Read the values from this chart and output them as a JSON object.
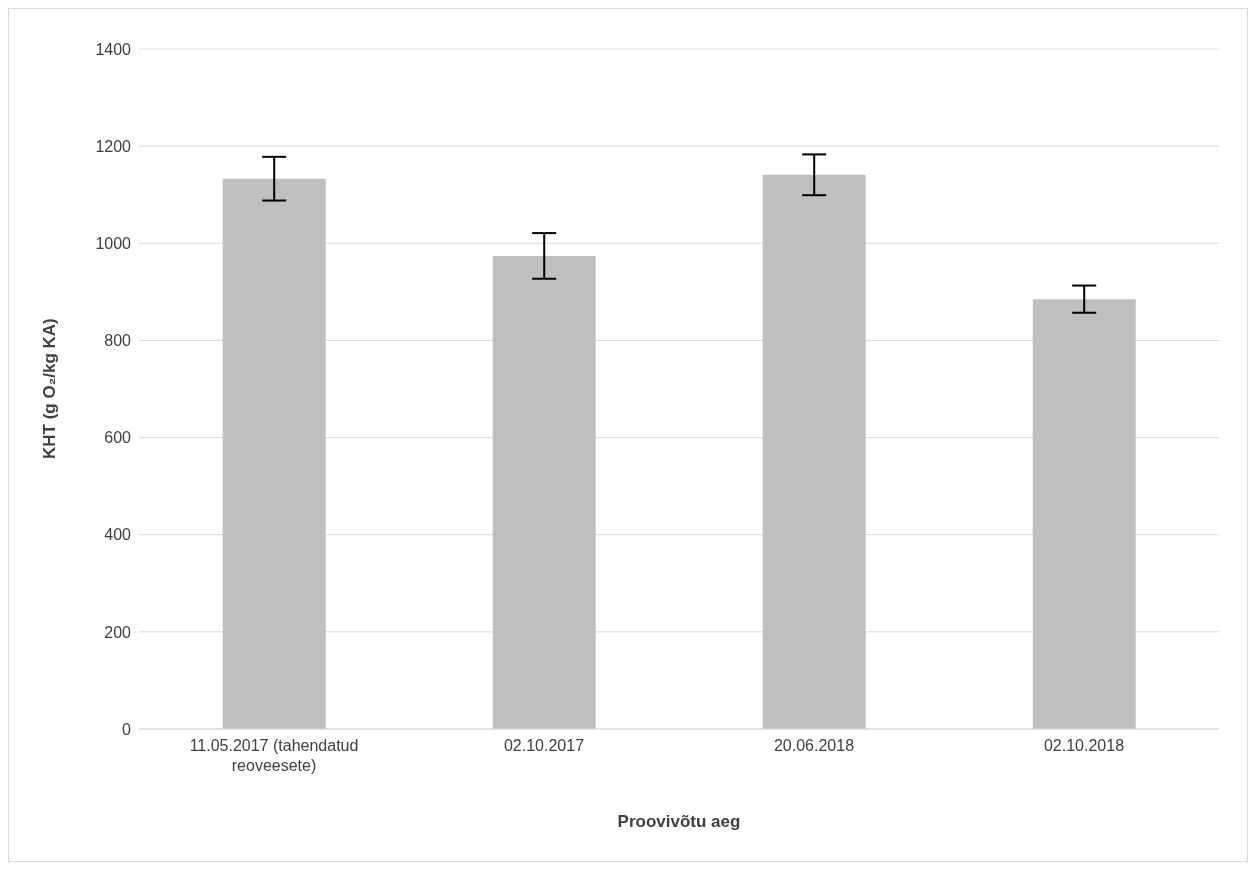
{
  "chart_data": {
    "type": "bar",
    "xlabel": "Proovivõtu aeg",
    "ylabel": "KHT (g O₂/kg KA)",
    "categories": [
      "11.05.2017 (tahendatud reoveesete)",
      "02.10.2017",
      "20.06.2018",
      "02.10.2018"
    ],
    "values": [
      1133,
      974,
      1141,
      885
    ],
    "errors": [
      45,
      47,
      42,
      28
    ],
    "color": "#bfbfbf",
    "ylim": [
      0,
      1400
    ],
    "yticks": [
      0,
      200,
      400,
      600,
      800,
      1000,
      1200,
      1400
    ],
    "grid": "y"
  }
}
